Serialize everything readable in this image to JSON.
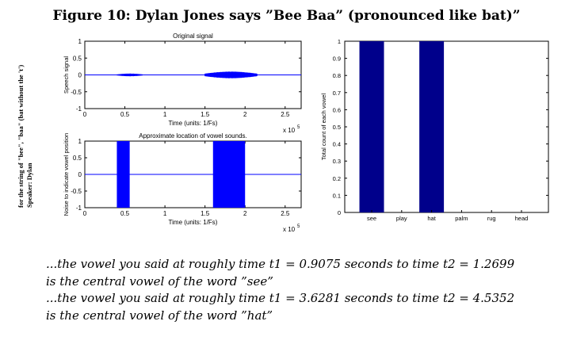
{
  "figure": {
    "title": "Figure 10: Dylan Jones says ”Bee Baa” (pronounced like bat)”",
    "side_lines": [
      "for the string of \"bee\", \"baa\" (bat without the 't')",
      "Speaker: Dylan"
    ]
  },
  "colors": {
    "signal": "#0000ff",
    "bar_dark": "#00008b",
    "axis": "#000000",
    "grid": "#b0b0b0"
  },
  "chart_data": [
    {
      "type": "line",
      "title": "Original signal",
      "xlabel": "Time (units: 1/Fs)",
      "x_exponent_label": "x 10",
      "x_exponent": "5",
      "ylabel": "Speech signal",
      "xlim": [
        0,
        2.7
      ],
      "ylim": [
        -1,
        1
      ],
      "x_ticks": [
        "0",
        "0.5",
        "1",
        "1.5",
        "2",
        "2.5"
      ],
      "x_tick_values": [
        0,
        0.5,
        1,
        1.5,
        2,
        2.5
      ],
      "y_ticks": [
        "1",
        "0.5",
        "0",
        "-0.5",
        "-1"
      ],
      "y_tick_values": [
        1,
        0.5,
        0,
        -0.5,
        -1
      ],
      "bursts": [
        {
          "x_start": 0.4,
          "x_end": 0.72,
          "amplitude": 0.04
        },
        {
          "x_start": 1.5,
          "x_end": 2.15,
          "amplitude": 0.1
        }
      ]
    },
    {
      "type": "area",
      "title": "Approximate location of vowel sounds.",
      "xlabel": "Time (units: 1/Fs)",
      "x_exponent_label": "x 10",
      "x_exponent": "5",
      "ylabel": "Noise to indicate vowel position",
      "xlim": [
        0,
        2.7
      ],
      "ylim": [
        -1,
        1
      ],
      "x_ticks": [
        "0",
        "0.5",
        "1",
        "1.5",
        "2",
        "2.5"
      ],
      "x_tick_values": [
        0,
        0.5,
        1,
        1.5,
        2,
        2.5
      ],
      "y_ticks": [
        "1",
        "0.5",
        "0",
        "-0.5",
        "-1"
      ],
      "y_tick_values": [
        1,
        0.5,
        0,
        -0.5,
        -1
      ],
      "regions": [
        {
          "x_start": 0.4,
          "x_end": 0.56
        },
        {
          "x_start": 1.6,
          "x_end": 2.0
        }
      ]
    },
    {
      "type": "bar",
      "title": "",
      "xlabel": "",
      "ylabel": "Total count of each vowel",
      "categories": [
        "see",
        "play",
        "hat",
        "palm",
        "rug",
        "head"
      ],
      "values": [
        1,
        0,
        1,
        0,
        0,
        0
      ],
      "ylim": [
        0,
        1
      ],
      "y_ticks": [
        "1",
        "0.9",
        "0.8",
        "0.7",
        "0.6",
        "0.5",
        "0.4",
        "0.3",
        "0.2",
        "0.1",
        "0"
      ],
      "y_tick_values": [
        1,
        0.9,
        0.8,
        0.7,
        0.6,
        0.5,
        0.4,
        0.3,
        0.2,
        0.1,
        0
      ]
    }
  ],
  "caption": [
    "...the vowel you said at roughly time t1 = 0.9075 seconds to time t2 = 1.2699",
    "is the central vowel of the word ”see”",
    "...the vowel you said at roughly time t1 = 3.6281 seconds to time t2 = 4.5352",
    "is the central vowel of the word ”hat”"
  ]
}
